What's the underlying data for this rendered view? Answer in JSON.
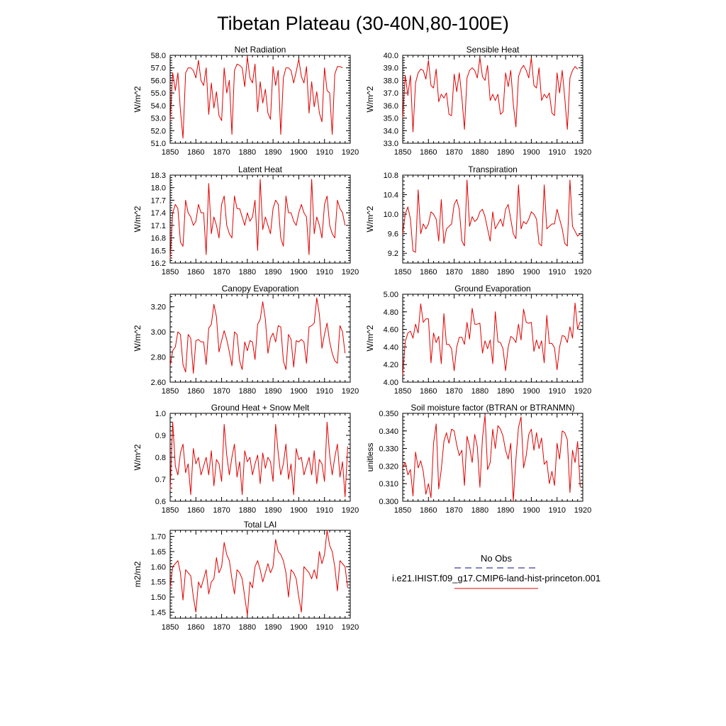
{
  "page_title": "Tibetan Plateau (30-40N,80-100E)",
  "legend": {
    "obs_label": "No Obs",
    "model_label": "i.e21.IHIST.f09_g17.CMIP6-land-hist-princeton.001",
    "obs_color": "#3a3aa6",
    "model_color": "#e00000"
  },
  "chart_data": [
    {
      "type": "line",
      "title": "Net Radiation",
      "ylabel": "W/m^2",
      "xlim": [
        1850,
        1920
      ],
      "ylim": [
        51.0,
        58.0
      ],
      "xticks": [
        1850,
        1860,
        1870,
        1880,
        1890,
        1900,
        1910,
        1920
      ],
      "yticks": [
        "51.0",
        "52.0",
        "53.0",
        "54.0",
        "55.0",
        "56.0",
        "57.0",
        "58.0"
      ],
      "series": [
        {
          "color": "#e00000",
          "x0": 1850,
          "values": [
            52.8,
            56.6,
            55.2,
            56.6,
            53.6,
            51.4,
            56.6,
            57.0,
            57.0,
            56.8,
            56.2,
            57.6,
            56.0,
            55.6,
            57.0,
            53.3,
            55.8,
            53.8,
            55.1,
            53.2,
            52.8,
            57.0,
            55.0,
            56.0,
            51.7,
            56.8,
            57.3,
            57.2,
            57.0,
            55.5,
            57.9,
            56.2,
            55.8,
            57.3,
            53.5,
            55.9,
            54.2,
            55.3,
            53.4,
            52.9,
            57.1,
            55.6,
            56.8,
            51.7,
            56.2,
            57.0,
            57.0,
            56.8,
            55.8,
            56.7,
            57.7,
            56.3,
            55.8,
            57.1,
            53.4,
            55.9,
            53.9,
            55.1,
            53.4,
            52.7,
            57.0,
            55.2,
            55.0,
            51.7,
            56.5,
            57.1,
            57.1,
            57.0
          ]
        }
      ]
    },
    {
      "type": "line",
      "title": "Sensible Heat",
      "ylabel": "W/m^2",
      "xlim": [
        1850,
        1920
      ],
      "ylim": [
        33.0,
        40.0
      ],
      "xticks": [
        1850,
        1860,
        1870,
        1880,
        1890,
        1900,
        1910,
        1920
      ],
      "yticks": [
        "33.0",
        "34.0",
        "35.0",
        "36.0",
        "37.0",
        "38.0",
        "39.0",
        "40.0"
      ],
      "series": [
        {
          "color": "#e00000",
          "x0": 1850,
          "values": [
            35.0,
            38.4,
            36.8,
            38.4,
            33.9,
            37.8,
            38.6,
            38.9,
            38.8,
            38.1,
            39.6,
            37.6,
            37.4,
            38.9,
            36.3,
            36.9,
            36.6,
            37.0,
            35.3,
            35.2,
            38.5,
            37.1,
            38.6,
            36.6,
            34.1,
            38.2,
            38.8,
            39.0,
            38.8,
            38.2,
            39.8,
            38.3,
            38.0,
            39.2,
            36.4,
            36.9,
            36.4,
            36.9,
            35.3,
            35.5,
            38.6,
            37.5,
            38.8,
            36.1,
            34.3,
            38.3,
            38.9,
            39.2,
            38.8,
            38.2,
            39.8,
            37.6,
            37.4,
            39.0,
            36.4,
            36.9,
            36.6,
            37.0,
            35.4,
            35.2,
            38.6,
            37.0,
            38.8,
            36.6,
            34.1,
            38.2,
            38.8,
            39.1,
            38.9
          ]
        }
      ]
    },
    {
      "type": "line",
      "title": "Latent Heat",
      "ylabel": "W/m^2",
      "xlim": [
        1850,
        1920
      ],
      "ylim": [
        16.2,
        18.3
      ],
      "xticks": [
        1850,
        1860,
        1870,
        1880,
        1890,
        1900,
        1910,
        1920
      ],
      "yticks": [
        "16.2",
        "16.5",
        "16.8",
        "17.1",
        "17.4",
        "17.7",
        "18.0",
        "18.3"
      ],
      "series": [
        {
          "color": "#e00000",
          "x0": 1850,
          "values": [
            16.3,
            17.4,
            17.6,
            17.5,
            16.7,
            16.6,
            17.7,
            17.4,
            17.3,
            17.1,
            17.2,
            17.6,
            17.4,
            17.4,
            16.4,
            18.1,
            16.9,
            17.3,
            17.1,
            16.8,
            17.6,
            17.8,
            17.1,
            16.9,
            16.8,
            17.8,
            17.5,
            17.5,
            17.3,
            17.1,
            17.4,
            17.2,
            17.3,
            17.7,
            16.5,
            18.2,
            17.0,
            17.3,
            17.1,
            16.9,
            17.5,
            17.7,
            17.6,
            16.8,
            16.6,
            17.8,
            17.4,
            17.4,
            17.2,
            17.1,
            17.4,
            17.6,
            17.4,
            17.3,
            16.4,
            18.2,
            16.9,
            17.3,
            17.1,
            16.8,
            17.6,
            17.8,
            17.1,
            16.9,
            16.8,
            17.7,
            17.5,
            17.4,
            17.1
          ]
        }
      ]
    },
    {
      "type": "line",
      "title": "Transpiration",
      "ylabel": "W/m^2",
      "xlim": [
        1850,
        1920
      ],
      "ylim": [
        9.0,
        10.8
      ],
      "xticks": [
        1850,
        1860,
        1870,
        1880,
        1890,
        1900,
        1910,
        1920
      ],
      "yticks": [
        "9.2",
        "9.6",
        "10.0",
        "10.4",
        "10.8"
      ],
      "series": [
        {
          "color": "#e00000",
          "x0": 1850,
          "values": [
            9.6,
            10.0,
            10.15,
            9.9,
            9.25,
            9.22,
            10.5,
            9.6,
            9.8,
            9.7,
            9.8,
            10.05,
            10.0,
            9.9,
            9.45,
            10.3,
            9.4,
            9.7,
            9.75,
            9.8,
            10.2,
            10.3,
            10.1,
            9.45,
            9.35,
            10.7,
            9.75,
            9.95,
            9.85,
            9.9,
            10.05,
            10.1,
            9.95,
            9.7,
            9.45,
            10.05,
            9.7,
            9.8,
            9.9,
            9.75,
            10.1,
            10.2,
            9.9,
            9.6,
            9.5,
            10.6,
            9.7,
            9.85,
            9.8,
            9.9,
            10.05,
            10.0,
            9.9,
            9.4,
            9.35,
            10.6,
            9.7,
            9.75,
            9.8,
            9.8,
            10.1,
            9.9,
            9.7,
            9.4,
            9.35,
            10.7,
            9.75,
            9.65,
            9.55,
            9.6
          ]
        }
      ]
    },
    {
      "type": "line",
      "title": "Canopy Evaporation",
      "ylabel": "W/m^2",
      "xlim": [
        1850,
        1920
      ],
      "ylim": [
        2.6,
        3.3
      ],
      "xticks": [
        1850,
        1860,
        1870,
        1880,
        1890,
        1900,
        1910,
        1920
      ],
      "yticks": [
        "2.60",
        "2.80",
        "3.00",
        "3.20"
      ],
      "series": [
        {
          "color": "#e00000",
          "x0": 1850,
          "values": [
            2.73,
            2.85,
            2.88,
            3.0,
            2.98,
            2.74,
            2.68,
            2.98,
            2.95,
            2.67,
            2.93,
            2.94,
            2.92,
            2.92,
            2.74,
            3.03,
            3.06,
            3.22,
            3.12,
            2.84,
            2.93,
            3.01,
            2.94,
            2.84,
            2.73,
            3.0,
            2.98,
            2.77,
            2.7,
            2.92,
            2.85,
            2.93,
            2.92,
            2.78,
            3.06,
            3.1,
            3.24,
            3.1,
            2.83,
            2.95,
            2.99,
            2.92,
            3.05,
            3.04,
            2.77,
            2.7,
            2.98,
            2.94,
            2.72,
            2.93,
            2.92,
            2.94,
            2.92,
            2.75,
            3.04,
            3.05,
            3.07,
            3.27,
            3.14,
            2.87,
            2.98,
            3.07,
            2.92,
            2.83,
            2.77,
            2.75,
            3.05,
            3.0,
            2.83
          ]
        }
      ]
    },
    {
      "type": "line",
      "title": "Ground Evaporation",
      "ylabel": "W/m^2",
      "xlim": [
        1850,
        1920
      ],
      "ylim": [
        4.0,
        5.0
      ],
      "xticks": [
        1850,
        1860,
        1870,
        1880,
        1890,
        1900,
        1910,
        1920
      ],
      "yticks": [
        "4.00",
        "4.20",
        "4.40",
        "4.60",
        "4.80",
        "5.00"
      ],
      "series": [
        {
          "color": "#e00000",
          "x0": 1850,
          "values": [
            4.08,
            4.46,
            4.56,
            4.58,
            4.5,
            4.66,
            4.56,
            4.89,
            4.68,
            4.72,
            4.72,
            4.22,
            4.56,
            4.45,
            4.52,
            4.21,
            4.78,
            4.43,
            4.43,
            4.38,
            4.13,
            4.4,
            4.51,
            4.51,
            4.43,
            4.68,
            4.49,
            4.84,
            4.66,
            4.66,
            4.67,
            4.33,
            4.47,
            4.38,
            4.48,
            4.21,
            4.8,
            4.46,
            4.45,
            4.38,
            4.13,
            4.4,
            4.52,
            4.5,
            4.45,
            4.66,
            4.48,
            4.83,
            4.68,
            4.67,
            4.68,
            4.35,
            4.48,
            4.38,
            4.47,
            4.22,
            4.76,
            4.44,
            4.44,
            4.39,
            4.14,
            4.4,
            4.53,
            4.52,
            4.45,
            4.63,
            4.5,
            4.9,
            4.6,
            4.69
          ]
        }
      ]
    },
    {
      "type": "line",
      "title": "Ground Heat + Snow Melt",
      "ylabel": "W/m^2",
      "xlim": [
        1850,
        1920
      ],
      "ylim": [
        0.6,
        1.0
      ],
      "xticks": [
        1850,
        1860,
        1870,
        1880,
        1890,
        1900,
        1910,
        1920
      ],
      "yticks": [
        "0.6",
        "0.7",
        "0.8",
        "0.9",
        "1.0"
      ],
      "series": [
        {
          "color": "#e00000",
          "x0": 1850,
          "values": [
            0.65,
            0.96,
            0.76,
            0.72,
            0.82,
            0.86,
            0.73,
            0.77,
            0.63,
            0.84,
            0.77,
            0.8,
            0.72,
            0.76,
            0.8,
            0.72,
            0.83,
            0.67,
            0.79,
            0.77,
            0.69,
            0.95,
            0.81,
            0.72,
            0.8,
            0.86,
            0.71,
            0.78,
            0.63,
            0.83,
            0.78,
            0.8,
            0.72,
            0.77,
            0.81,
            0.68,
            0.82,
            0.75,
            0.8,
            0.78,
            0.69,
            0.95,
            0.82,
            0.72,
            0.77,
            0.86,
            0.7,
            0.77,
            0.63,
            0.84,
            0.79,
            0.8,
            0.72,
            0.76,
            0.8,
            0.72,
            0.83,
            0.68,
            0.79,
            0.77,
            0.69,
            0.96,
            0.81,
            0.72,
            0.8,
            0.86,
            0.71,
            0.78,
            0.62,
            0.85
          ]
        }
      ]
    },
    {
      "type": "line",
      "title": "Soil moisture factor (BTRAN or BTRANMN)",
      "ylabel": "unitless",
      "xlim": [
        1850,
        1920
      ],
      "ylim": [
        0.3,
        0.35
      ],
      "xticks": [
        1850,
        1860,
        1870,
        1880,
        1890,
        1900,
        1910,
        1920
      ],
      "yticks": [
        "0.300",
        "0.310",
        "0.320",
        "0.330",
        "0.340",
        "0.350"
      ],
      "series": [
        {
          "color": "#e00000",
          "x0": 1850,
          "values": [
            0.319,
            0.322,
            0.315,
            0.318,
            0.303,
            0.328,
            0.319,
            0.323,
            0.317,
            0.304,
            0.31,
            0.302,
            0.333,
            0.344,
            0.307,
            0.318,
            0.334,
            0.339,
            0.333,
            0.341,
            0.34,
            0.332,
            0.326,
            0.329,
            0.309,
            0.337,
            0.331,
            0.322,
            0.338,
            0.331,
            0.308,
            0.336,
            0.349,
            0.318,
            0.322,
            0.341,
            0.33,
            0.343,
            0.341,
            0.337,
            0.329,
            0.324,
            0.333,
            0.3,
            0.324,
            0.342,
            0.348,
            0.319,
            0.326,
            0.338,
            0.341,
            0.329,
            0.339,
            0.33,
            0.336,
            0.321,
            0.323,
            0.31,
            0.317,
            0.309,
            0.333,
            0.324,
            0.34,
            0.339,
            0.335,
            0.305,
            0.329,
            0.322,
            0.334,
            0.308
          ]
        }
      ]
    },
    {
      "type": "line",
      "title": "Total LAI",
      "ylabel": "m2/m2",
      "xlim": [
        1850,
        1920
      ],
      "ylim": [
        1.43,
        1.72
      ],
      "xticks": [
        1850,
        1860,
        1870,
        1880,
        1890,
        1900,
        1910,
        1920
      ],
      "yticks": [
        "1.45",
        "1.50",
        "1.55",
        "1.60",
        "1.65",
        "1.70"
      ],
      "series": [
        {
          "color": "#e00000",
          "x0": 1850,
          "values": [
            1.53,
            1.6,
            1.61,
            1.62,
            1.58,
            1.49,
            1.59,
            1.58,
            1.57,
            1.5,
            1.45,
            1.55,
            1.53,
            1.56,
            1.59,
            1.51,
            1.55,
            1.56,
            1.63,
            1.58,
            1.6,
            1.68,
            1.64,
            1.62,
            1.56,
            1.51,
            1.59,
            1.58,
            1.56,
            1.5,
            1.44,
            1.55,
            1.53,
            1.6,
            1.62,
            1.59,
            1.55,
            1.58,
            1.61,
            1.58,
            1.6,
            1.69,
            1.65,
            1.64,
            1.62,
            1.58,
            1.5,
            1.59,
            1.58,
            1.56,
            1.5,
            1.45,
            1.6,
            1.59,
            1.58,
            1.56,
            1.59,
            1.56,
            1.65,
            1.61,
            1.64,
            1.72,
            1.67,
            1.65,
            1.6,
            1.52,
            1.62,
            1.61,
            1.6,
            1.53
          ]
        }
      ]
    }
  ]
}
